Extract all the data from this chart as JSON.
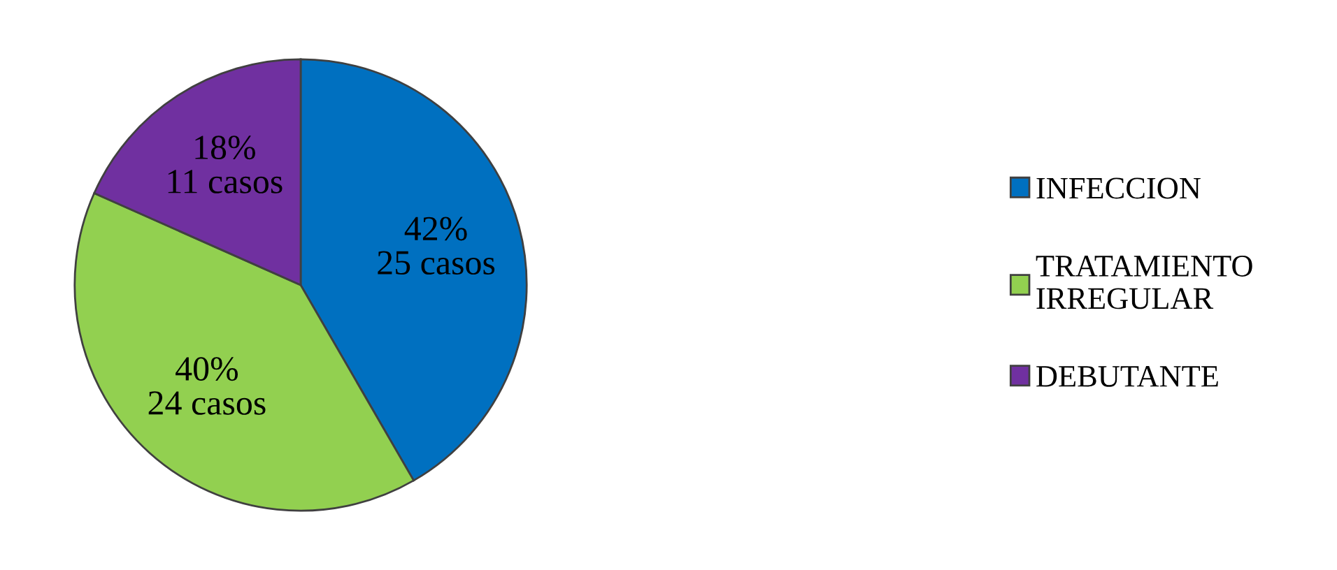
{
  "chart_data": {
    "type": "pie",
    "categories": [
      "INFECCION",
      "TRATAMIENTO\nIRREGULAR",
      "DEBUTANTE"
    ],
    "values": [
      25,
      24,
      11
    ],
    "colors": [
      "#0070c0",
      "#92d050",
      "#7030a0"
    ],
    "value_labels": [
      "42%\n25 casos",
      "40%\n24 casos",
      "18%\n11 casos"
    ],
    "legend": "right"
  }
}
